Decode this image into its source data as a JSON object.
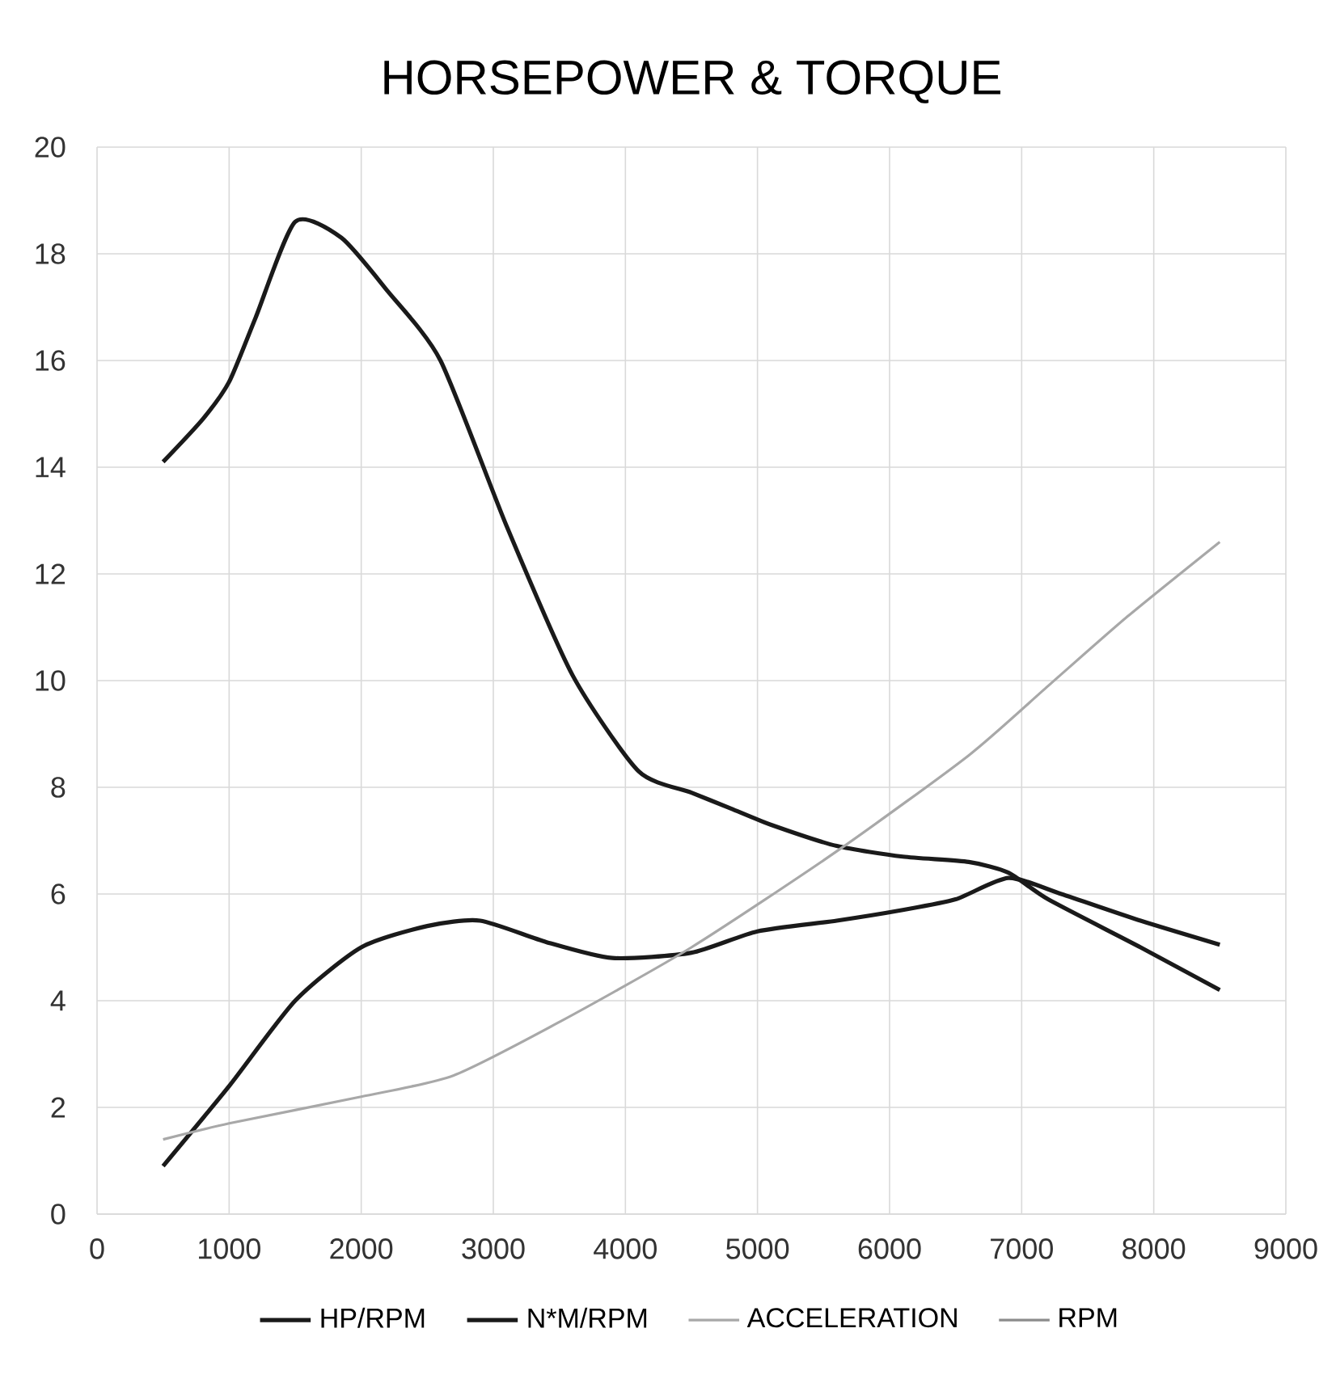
{
  "chart_data": {
    "type": "line",
    "title": "HORSEPOWER & TORQUE",
    "series": [
      {
        "name": "HP/RPM",
        "color": "#1a1a1a",
        "x": [
          500,
          1000,
          1500,
          2000,
          2500,
          2900,
          3400,
          3900,
          4500,
          5000,
          5600,
          6100,
          6500,
          6900,
          7300,
          7900,
          8500
        ],
        "values": [
          0.9,
          2.4,
          4.0,
          5.0,
          5.4,
          5.5,
          5.1,
          4.8,
          4.9,
          5.3,
          5.5,
          5.7,
          5.9,
          6.3,
          6.0,
          5.5,
          5.05
        ]
      },
      {
        "name": "N*M/RPM",
        "color": "#1a1a1a",
        "x": [
          500,
          800,
          1000,
          1200,
          1500,
          1850,
          2200,
          2600,
          3100,
          3600,
          4100,
          4500,
          4800,
          5100,
          5600,
          6100,
          6600,
          6900,
          7200,
          7900,
          8500
        ],
        "values": [
          14.1,
          14.9,
          15.6,
          16.8,
          18.6,
          18.3,
          17.3,
          16.0,
          12.9,
          10.1,
          8.3,
          7.9,
          7.6,
          7.3,
          6.9,
          6.7,
          6.6,
          6.4,
          5.9,
          5.0,
          4.2
        ]
      },
      {
        "name": "ACCELERATION",
        "color": "#a8a8a8",
        "x": [
          500,
          1000,
          2000,
          2700,
          3500,
          4500,
          5600,
          6600,
          7200,
          7800,
          8500
        ],
        "values": [
          1.4,
          1.7,
          2.2,
          2.6,
          3.6,
          5.0,
          6.8,
          8.6,
          9.9,
          11.2,
          12.6
        ]
      },
      {
        "name": "RPM",
        "color": "#8c8c8c"
      }
    ],
    "xlim": [
      0,
      9000
    ],
    "xticks": [
      0,
      1000,
      2000,
      3000,
      4000,
      5000,
      6000,
      7000,
      8000,
      9000
    ],
    "ylim": [
      0,
      20
    ],
    "yticks": [
      0,
      2,
      4,
      6,
      8,
      10,
      12,
      14,
      16,
      18,
      20
    ],
    "grid": true,
    "legend": "bottom"
  }
}
